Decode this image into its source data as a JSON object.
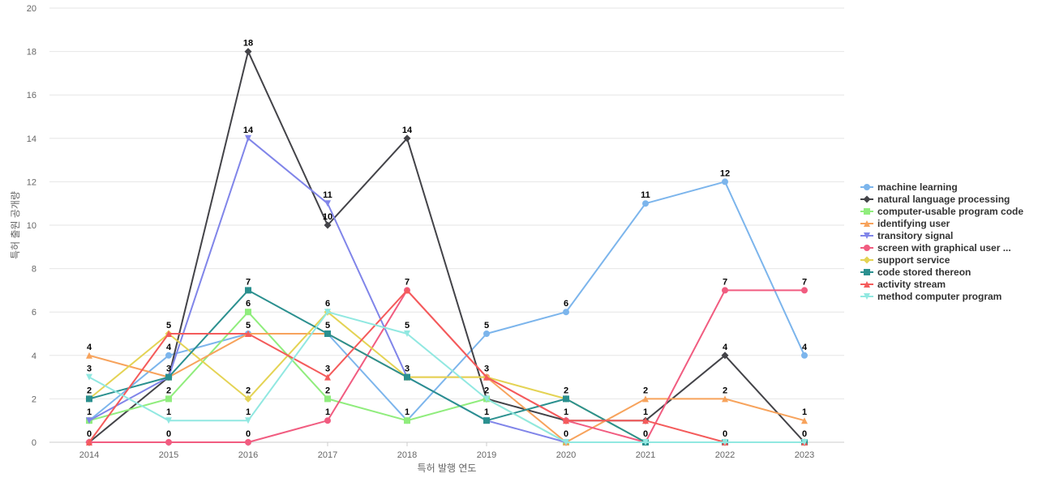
{
  "chart_data": {
    "type": "line",
    "title": "",
    "xlabel": "특허 발행 연도",
    "ylabel": "특허 출원 공개량",
    "ylim": [
      0,
      20
    ],
    "yticks": [
      0,
      2,
      4,
      6,
      8,
      10,
      12,
      14,
      16,
      18,
      20
    ],
    "grid": true,
    "legend_position": "right",
    "categories": [
      "2014",
      "2015",
      "2016",
      "2017",
      "2018",
      "2019",
      "2020",
      "2021",
      "2022",
      "2023"
    ],
    "series": [
      {
        "name": "machine learning",
        "color": "#7cb5ec",
        "marker": "circle",
        "values": [
          1,
          4,
          5,
          5,
          1,
          5,
          6,
          11,
          12,
          4
        ]
      },
      {
        "name": "natural language processing",
        "color": "#434348",
        "marker": "diamond",
        "values": [
          0,
          3,
          18,
          10,
          14,
          2,
          1,
          1,
          4,
          0
        ]
      },
      {
        "name": "computer-usable program code",
        "color": "#90ed7d",
        "marker": "square",
        "values": [
          1,
          2,
          6,
          2,
          1,
          2,
          0,
          0,
          0,
          0
        ]
      },
      {
        "name": "identifying user",
        "color": "#f7a35c",
        "marker": "triangle",
        "values": [
          4,
          3,
          5,
          5,
          3,
          3,
          0,
          2,
          2,
          1
        ]
      },
      {
        "name": "transitory signal",
        "color": "#8085e9",
        "marker": "triangle-down",
        "values": [
          1,
          3,
          14,
          11,
          3,
          1,
          0,
          0,
          0,
          0
        ]
      },
      {
        "name": "screen with graphical user ...",
        "color": "#f15c80",
        "marker": "circle",
        "values": [
          0,
          0,
          0,
          1,
          7,
          3,
          1,
          0,
          7,
          7
        ]
      },
      {
        "name": "support service",
        "color": "#e4d354",
        "marker": "diamond",
        "values": [
          2,
          5,
          2,
          6,
          3,
          3,
          2,
          0,
          0,
          0
        ]
      },
      {
        "name": "code stored thereon",
        "color": "#2b908f",
        "marker": "square",
        "values": [
          2,
          3,
          7,
          5,
          3,
          1,
          2,
          0,
          0,
          0
        ]
      },
      {
        "name": "activity stream",
        "color": "#f45b5b",
        "marker": "triangle",
        "values": [
          0,
          5,
          5,
          3,
          7,
          3,
          1,
          1,
          0,
          0
        ]
      },
      {
        "name": "method computer program",
        "color": "#91e8e1",
        "marker": "triangle-down",
        "values": [
          3,
          1,
          1,
          6,
          5,
          2,
          0,
          0,
          0,
          0
        ]
      }
    ],
    "data_labels": [
      {
        "category": "2014",
        "value": 4,
        "text": "4"
      },
      {
        "category": "2014",
        "value": 3,
        "text": "3"
      },
      {
        "category": "2014",
        "value": 2,
        "text": "2"
      },
      {
        "category": "2014",
        "value": 1,
        "text": "1"
      },
      {
        "category": "2014",
        "value": 0,
        "text": "0"
      },
      {
        "category": "2015",
        "value": 5,
        "text": "5"
      },
      {
        "category": "2015",
        "value": 4,
        "text": "4"
      },
      {
        "category": "2015",
        "value": 3,
        "text": "3"
      },
      {
        "category": "2015",
        "value": 2,
        "text": "2"
      },
      {
        "category": "2015",
        "value": 1,
        "text": "1"
      },
      {
        "category": "2015",
        "value": 0,
        "text": "0"
      },
      {
        "category": "2016",
        "value": 18,
        "text": "18"
      },
      {
        "category": "2016",
        "value": 14,
        "text": "14"
      },
      {
        "category": "2016",
        "value": 7,
        "text": "7"
      },
      {
        "category": "2016",
        "value": 6,
        "text": "6"
      },
      {
        "category": "2016",
        "value": 5,
        "text": "5"
      },
      {
        "category": "2016",
        "value": 2,
        "text": "2"
      },
      {
        "category": "2016",
        "value": 1,
        "text": "1"
      },
      {
        "category": "2016",
        "value": 0,
        "text": "0"
      },
      {
        "category": "2017",
        "value": 11,
        "text": "11"
      },
      {
        "category": "2017",
        "value": 10,
        "text": "10"
      },
      {
        "category": "2017",
        "value": 6,
        "text": "6"
      },
      {
        "category": "2017",
        "value": 5,
        "text": "5"
      },
      {
        "category": "2017",
        "value": 3,
        "text": "3"
      },
      {
        "category": "2017",
        "value": 2,
        "text": "2"
      },
      {
        "category": "2017",
        "value": 1,
        "text": "1"
      },
      {
        "category": "2018",
        "value": 14,
        "text": "14"
      },
      {
        "category": "2018",
        "value": 7,
        "text": "7"
      },
      {
        "category": "2018",
        "value": 5,
        "text": "5"
      },
      {
        "category": "2018",
        "value": 3,
        "text": "3"
      },
      {
        "category": "2018",
        "value": 1,
        "text": "1"
      },
      {
        "category": "2019",
        "value": 5,
        "text": "5"
      },
      {
        "category": "2019",
        "value": 3,
        "text": "3"
      },
      {
        "category": "2019",
        "value": 2,
        "text": "2"
      },
      {
        "category": "2019",
        "value": 1,
        "text": "1"
      },
      {
        "category": "2020",
        "value": 6,
        "text": "6"
      },
      {
        "category": "2020",
        "value": 2,
        "text": "2"
      },
      {
        "category": "2020",
        "value": 1,
        "text": "1"
      },
      {
        "category": "2020",
        "value": 0,
        "text": "0"
      },
      {
        "category": "2021",
        "value": 11,
        "text": "11"
      },
      {
        "category": "2021",
        "value": 2,
        "text": "2"
      },
      {
        "category": "2021",
        "value": 1,
        "text": "1"
      },
      {
        "category": "2021",
        "value": 0,
        "text": "0"
      },
      {
        "category": "2022",
        "value": 12,
        "text": "12"
      },
      {
        "category": "2022",
        "value": 7,
        "text": "7"
      },
      {
        "category": "2022",
        "value": 4,
        "text": "4"
      },
      {
        "category": "2022",
        "value": 2,
        "text": "2"
      },
      {
        "category": "2022",
        "value": 0,
        "text": "0"
      },
      {
        "category": "2023",
        "value": 7,
        "text": "7"
      },
      {
        "category": "2023",
        "value": 4,
        "text": "4"
      },
      {
        "category": "2023",
        "value": 1,
        "text": "1"
      },
      {
        "category": "2023",
        "value": 0,
        "text": "0"
      }
    ]
  }
}
